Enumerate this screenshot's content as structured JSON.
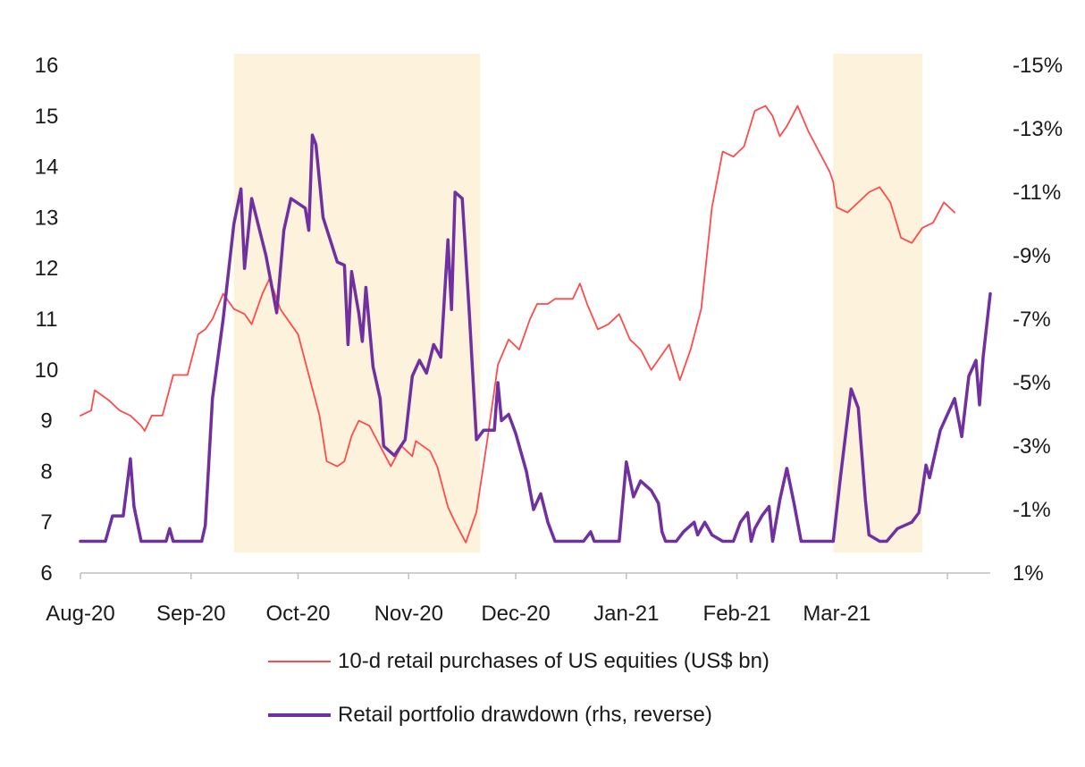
{
  "chart_data": {
    "type": "line",
    "x_tick_labels": [
      "Aug-20",
      "Sep-20",
      "Oct-20",
      "Nov-20",
      "Dec-20",
      "Jan-21",
      "Feb-21",
      "Mar-21"
    ],
    "y_left": {
      "ylim": [
        6,
        16
      ],
      "ticks": [
        "6",
        "7",
        "8",
        "9",
        "10",
        "11",
        "12",
        "13",
        "14",
        "15",
        "16"
      ]
    },
    "y_right": {
      "ylim": [
        1,
        -15
      ],
      "reversed": true,
      "ticks": [
        "1%",
        "-1%",
        "-3%",
        "-5%",
        "-7%",
        "-9%",
        "-11%",
        "-13%",
        "-15%"
      ]
    },
    "shaded_periods": [
      {
        "start": "2020-09-13",
        "end": "2020-11-21"
      },
      {
        "start": "2021-02-28",
        "end": "2021-03-25"
      }
    ],
    "series": [
      {
        "name": "10-d retail purchases of US equities (US$ bn)",
        "axis": "left",
        "color": "#ff4b4b",
        "points": [
          [
            "2020-08-01",
            9.1
          ],
          [
            "2020-08-04",
            9.2
          ],
          [
            "2020-08-05",
            9.6
          ],
          [
            "2020-08-09",
            9.4
          ],
          [
            "2020-08-12",
            9.2
          ],
          [
            "2020-08-15",
            9.1
          ],
          [
            "2020-08-18",
            8.9
          ],
          [
            "2020-08-19",
            8.8
          ],
          [
            "2020-08-21",
            9.1
          ],
          [
            "2020-08-24",
            9.1
          ],
          [
            "2020-08-27",
            9.9
          ],
          [
            "2020-08-31",
            9.9
          ],
          [
            "2020-09-03",
            10.7
          ],
          [
            "2020-09-05",
            10.8
          ],
          [
            "2020-09-07",
            11.0
          ],
          [
            "2020-09-10",
            11.5
          ],
          [
            "2020-09-13",
            11.2
          ],
          [
            "2020-09-16",
            11.1
          ],
          [
            "2020-09-18",
            10.9
          ],
          [
            "2020-09-21",
            11.5
          ],
          [
            "2020-09-23",
            11.8
          ],
          [
            "2020-09-26",
            11.2
          ],
          [
            "2020-09-29",
            10.9
          ],
          [
            "2020-10-01",
            10.7
          ],
          [
            "2020-10-04",
            9.9
          ],
          [
            "2020-10-07",
            9.1
          ],
          [
            "2020-10-09",
            8.2
          ],
          [
            "2020-10-12",
            8.1
          ],
          [
            "2020-10-14",
            8.2
          ],
          [
            "2020-10-16",
            8.7
          ],
          [
            "2020-10-18",
            9.0
          ],
          [
            "2020-10-21",
            8.9
          ],
          [
            "2020-10-24",
            8.5
          ],
          [
            "2020-10-27",
            8.1
          ],
          [
            "2020-10-30",
            8.5
          ],
          [
            "2020-11-02",
            8.3
          ],
          [
            "2020-11-03",
            8.6
          ],
          [
            "2020-11-07",
            8.4
          ],
          [
            "2020-11-09",
            8.1
          ],
          [
            "2020-11-12",
            7.3
          ],
          [
            "2020-11-14",
            7.0
          ],
          [
            "2020-11-17",
            6.6
          ],
          [
            "2020-11-20",
            7.2
          ],
          [
            "2020-11-23",
            8.6
          ],
          [
            "2020-11-26",
            10.1
          ],
          [
            "2020-11-29",
            10.6
          ],
          [
            "2020-12-02",
            10.4
          ],
          [
            "2020-12-05",
            11.0
          ],
          [
            "2020-12-07",
            11.3
          ],
          [
            "2020-12-10",
            11.3
          ],
          [
            "2020-12-12",
            11.4
          ],
          [
            "2020-12-15",
            11.4
          ],
          [
            "2020-12-17",
            11.4
          ],
          [
            "2020-12-19",
            11.7
          ],
          [
            "2020-12-21",
            11.3
          ],
          [
            "2020-12-24",
            10.8
          ],
          [
            "2020-12-27",
            10.9
          ],
          [
            "2020-12-30",
            11.1
          ],
          [
            "2021-01-02",
            10.6
          ],
          [
            "2021-01-05",
            10.4
          ],
          [
            "2021-01-08",
            10.0
          ],
          [
            "2021-01-10",
            10.2
          ],
          [
            "2021-01-13",
            10.5
          ],
          [
            "2021-01-16",
            9.8
          ],
          [
            "2021-01-19",
            10.4
          ],
          [
            "2021-01-22",
            11.2
          ],
          [
            "2021-01-25",
            13.2
          ],
          [
            "2021-01-28",
            14.3
          ],
          [
            "2021-01-31",
            14.2
          ],
          [
            "2021-02-03",
            14.4
          ],
          [
            "2021-02-06",
            15.1
          ],
          [
            "2021-02-09",
            15.2
          ],
          [
            "2021-02-11",
            15.0
          ],
          [
            "2021-02-13",
            14.6
          ],
          [
            "2021-02-15",
            14.8
          ],
          [
            "2021-02-18",
            15.2
          ],
          [
            "2021-02-21",
            14.7
          ],
          [
            "2021-02-24",
            14.3
          ],
          [
            "2021-02-27",
            13.9
          ],
          [
            "2021-02-28",
            13.7
          ],
          [
            "2021-03-01",
            13.2
          ],
          [
            "2021-03-04",
            13.1
          ],
          [
            "2021-03-07",
            13.3
          ],
          [
            "2021-03-10",
            13.5
          ],
          [
            "2021-03-13",
            13.6
          ],
          [
            "2021-03-16",
            13.3
          ],
          [
            "2021-03-19",
            12.6
          ],
          [
            "2021-03-22",
            12.5
          ],
          [
            "2021-03-25",
            12.8
          ],
          [
            "2021-03-28",
            12.9
          ],
          [
            "2021-03-31",
            13.3
          ],
          [
            "2021-04-03",
            13.1
          ]
        ]
      },
      {
        "name": "Retail portfolio drawdown (rhs, reverse)",
        "axis": "right",
        "color": "#7030a0",
        "points": [
          [
            "2020-08-01",
            0.0
          ],
          [
            "2020-08-08",
            0.0
          ],
          [
            "2020-08-10",
            -0.8
          ],
          [
            "2020-08-13",
            -0.8
          ],
          [
            "2020-08-15",
            -2.6
          ],
          [
            "2020-08-16",
            -1.1
          ],
          [
            "2020-08-18",
            0.0
          ],
          [
            "2020-08-25",
            0.0
          ],
          [
            "2020-08-26",
            -0.4
          ],
          [
            "2020-08-27",
            0.0
          ],
          [
            "2020-09-04",
            0.0
          ],
          [
            "2020-09-05",
            -0.5
          ],
          [
            "2020-09-07",
            -4.5
          ],
          [
            "2020-09-10",
            -7.0
          ],
          [
            "2020-09-13",
            -10.0
          ],
          [
            "2020-09-15",
            -11.1
          ],
          [
            "2020-09-16",
            -8.6
          ],
          [
            "2020-09-18",
            -10.8
          ],
          [
            "2020-09-22",
            -9.0
          ],
          [
            "2020-09-25",
            -7.2
          ],
          [
            "2020-09-27",
            -9.8
          ],
          [
            "2020-09-29",
            -10.8
          ],
          [
            "2020-10-03",
            -10.5
          ],
          [
            "2020-10-04",
            -9.8
          ],
          [
            "2020-10-05",
            -12.8
          ],
          [
            "2020-10-06",
            -12.5
          ],
          [
            "2020-10-08",
            -10.2
          ],
          [
            "2020-10-12",
            -8.8
          ],
          [
            "2020-10-14",
            -8.7
          ],
          [
            "2020-10-15",
            -6.2
          ],
          [
            "2020-10-16",
            -8.5
          ],
          [
            "2020-10-18",
            -7.2
          ],
          [
            "2020-10-19",
            -6.3
          ],
          [
            "2020-10-20",
            -8.0
          ],
          [
            "2020-10-22",
            -5.5
          ],
          [
            "2020-10-24",
            -4.5
          ],
          [
            "2020-10-25",
            -3.0
          ],
          [
            "2020-10-28",
            -2.7
          ],
          [
            "2020-10-31",
            -3.2
          ],
          [
            "2020-11-02",
            -5.2
          ],
          [
            "2020-11-04",
            -5.7
          ],
          [
            "2020-11-06",
            -5.3
          ],
          [
            "2020-11-08",
            -6.2
          ],
          [
            "2020-11-10",
            -5.8
          ],
          [
            "2020-11-12",
            -9.5
          ],
          [
            "2020-11-13",
            -7.3
          ],
          [
            "2020-11-14",
            -11.0
          ],
          [
            "2020-11-16",
            -10.8
          ],
          [
            "2020-11-18",
            -7.2
          ],
          [
            "2020-11-20",
            -3.2
          ],
          [
            "2020-11-22",
            -3.5
          ],
          [
            "2020-11-25",
            -3.5
          ],
          [
            "2020-11-26",
            -5.0
          ],
          [
            "2020-11-27",
            -3.8
          ],
          [
            "2020-11-29",
            -4.0
          ],
          [
            "2020-12-01",
            -3.4
          ],
          [
            "2020-12-04",
            -2.2
          ],
          [
            "2020-12-05",
            -1.6
          ],
          [
            "2020-12-06",
            -1.0
          ],
          [
            "2020-12-08",
            -1.5
          ],
          [
            "2020-12-10",
            -0.6
          ],
          [
            "2020-12-12",
            0.0
          ],
          [
            "2020-12-20",
            0.0
          ],
          [
            "2020-12-22",
            -0.3
          ],
          [
            "2020-12-23",
            0.0
          ],
          [
            "2020-12-30",
            0.0
          ],
          [
            "2021-01-01",
            -2.5
          ],
          [
            "2021-01-03",
            -1.4
          ],
          [
            "2021-01-05",
            -1.9
          ],
          [
            "2021-01-08",
            -1.6
          ],
          [
            "2021-01-10",
            -1.2
          ],
          [
            "2021-01-11",
            -0.3
          ],
          [
            "2021-01-12",
            0.0
          ],
          [
            "2021-01-15",
            0.0
          ],
          [
            "2021-01-17",
            -0.3
          ],
          [
            "2021-01-20",
            -0.6
          ],
          [
            "2021-01-21",
            -0.2
          ],
          [
            "2021-01-23",
            -0.6
          ],
          [
            "2021-01-25",
            -0.2
          ],
          [
            "2021-01-28",
            0.0
          ],
          [
            "2021-01-31",
            0.0
          ],
          [
            "2021-02-02",
            -0.6
          ],
          [
            "2021-02-04",
            -0.9
          ],
          [
            "2021-02-05",
            0.0
          ],
          [
            "2021-02-06",
            -0.4
          ],
          [
            "2021-02-08",
            -0.8
          ],
          [
            "2021-02-10",
            -1.1
          ],
          [
            "2021-02-11",
            0.0
          ],
          [
            "2021-02-13",
            -1.3
          ],
          [
            "2021-02-15",
            -2.3
          ],
          [
            "2021-02-17",
            -1.2
          ],
          [
            "2021-02-19",
            0.0
          ],
          [
            "2021-02-22",
            0.0
          ],
          [
            "2021-02-24",
            0.0
          ],
          [
            "2021-02-28",
            0.0
          ],
          [
            "2021-03-02",
            -2.0
          ],
          [
            "2021-03-05",
            -4.8
          ],
          [
            "2021-03-07",
            -4.2
          ],
          [
            "2021-03-09",
            -1.3
          ],
          [
            "2021-03-10",
            -0.2
          ],
          [
            "2021-03-13",
            0.0
          ],
          [
            "2021-03-15",
            0.0
          ],
          [
            "2021-03-18",
            -0.4
          ],
          [
            "2021-03-22",
            -0.6
          ],
          [
            "2021-03-24",
            -0.9
          ],
          [
            "2021-03-26",
            -2.4
          ],
          [
            "2021-03-27",
            -2.0
          ],
          [
            "2021-03-30",
            -3.5
          ],
          [
            "2021-04-03",
            -4.5
          ],
          [
            "2021-04-05",
            -3.3
          ],
          [
            "2021-04-07",
            -5.2
          ],
          [
            "2021-04-09",
            -5.7
          ],
          [
            "2021-04-10",
            -4.3
          ],
          [
            "2021-04-11",
            -5.8
          ],
          [
            "2021-04-13",
            -7.8
          ]
        ]
      }
    ],
    "legend_position": "bottom",
    "grid": false
  }
}
